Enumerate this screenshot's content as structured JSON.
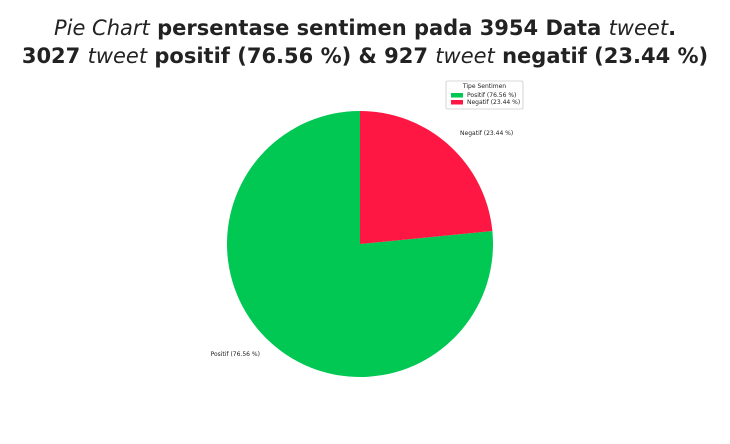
{
  "title": {
    "line1": {
      "part1": "Pie Chart",
      "part2": " persentase sentimen pada 3954 Data ",
      "part3": "tweet",
      "part4": "."
    },
    "line2": {
      "part1": "3027 ",
      "part2": "tweet",
      "part3": " positif (76.56 %) & 927 ",
      "part4": "tweet",
      "part5": " negatif (23.44 %)"
    }
  },
  "chart_data": {
    "type": "pie",
    "slices": [
      {
        "label": "Positif (76.56 %)",
        "value": 3027,
        "percent": 76.56,
        "color": "#00c853"
      },
      {
        "label": "Negatif (23.44 %)",
        "value": 927,
        "percent": 23.44,
        "color": "#ff1744"
      }
    ],
    "legend": {
      "title": "Tipe Sentimen",
      "placement": "top-right",
      "entries": [
        "Positif (76.56 %)",
        "Negatif (23.44 %)"
      ]
    }
  }
}
